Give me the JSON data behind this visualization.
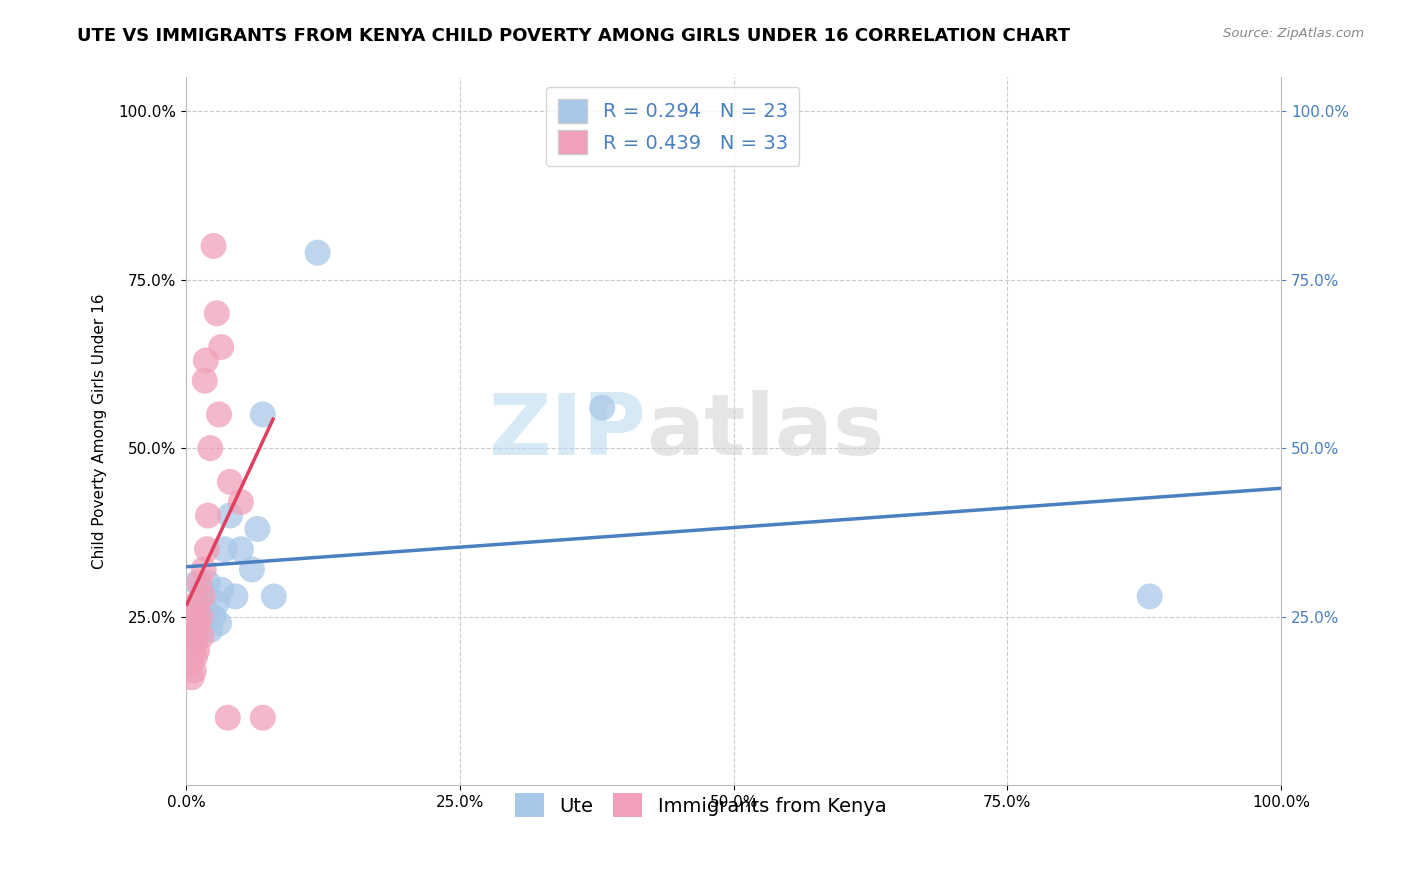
{
  "title": "UTE VS IMMIGRANTS FROM KENYA CHILD POVERTY AMONG GIRLS UNDER 16 CORRELATION CHART",
  "source": "Source: ZipAtlas.com",
  "ylabel": "Child Poverty Among Girls Under 16",
  "ute_R": 0.294,
  "ute_N": 23,
  "kenya_R": 0.439,
  "kenya_N": 33,
  "ute_color": "#a8c8e8",
  "kenya_color": "#f0a0b8",
  "ute_line_color": "#4a7fc0",
  "kenya_line_color": "#e04060",
  "kenya_line_dash": "dashed",
  "watermark_left": "ZIP",
  "watermark_right": "atlas",
  "ute_x": [
    0.005,
    0.008,
    0.01,
    0.012,
    0.015,
    0.018,
    0.02,
    0.022,
    0.025,
    0.028,
    0.03,
    0.032,
    0.035,
    0.04,
    0.045,
    0.05,
    0.06,
    0.065,
    0.07,
    0.08,
    0.12,
    0.38,
    0.88
  ],
  "ute_y": [
    0.26,
    0.22,
    0.3,
    0.24,
    0.29,
    0.26,
    0.3,
    0.23,
    0.25,
    0.27,
    0.24,
    0.29,
    0.35,
    0.4,
    0.28,
    0.35,
    0.32,
    0.38,
    0.55,
    0.28,
    0.79,
    0.56,
    0.28
  ],
  "kenya_x": [
    0.002,
    0.003,
    0.004,
    0.005,
    0.005,
    0.006,
    0.006,
    0.007,
    0.007,
    0.008,
    0.008,
    0.009,
    0.01,
    0.01,
    0.011,
    0.012,
    0.013,
    0.014,
    0.015,
    0.016,
    0.017,
    0.018,
    0.019,
    0.02,
    0.022,
    0.025,
    0.028,
    0.03,
    0.032,
    0.038,
    0.04,
    0.05,
    0.07
  ],
  "kenya_y": [
    0.2,
    0.22,
    0.18,
    0.16,
    0.23,
    0.2,
    0.25,
    0.17,
    0.21,
    0.19,
    0.24,
    0.22,
    0.2,
    0.27,
    0.24,
    0.3,
    0.25,
    0.22,
    0.28,
    0.32,
    0.6,
    0.63,
    0.35,
    0.4,
    0.5,
    0.8,
    0.7,
    0.55,
    0.65,
    0.1,
    0.45,
    0.42,
    0.1
  ],
  "xlim": [
    0.0,
    1.0
  ],
  "ylim": [
    0.0,
    1.05
  ],
  "xticks": [
    0.0,
    0.25,
    0.5,
    0.75,
    1.0
  ],
  "yticks": [
    0.25,
    0.5,
    0.75,
    1.0
  ],
  "title_fontsize": 13,
  "label_fontsize": 11,
  "tick_fontsize": 11,
  "legend_fontsize": 14
}
